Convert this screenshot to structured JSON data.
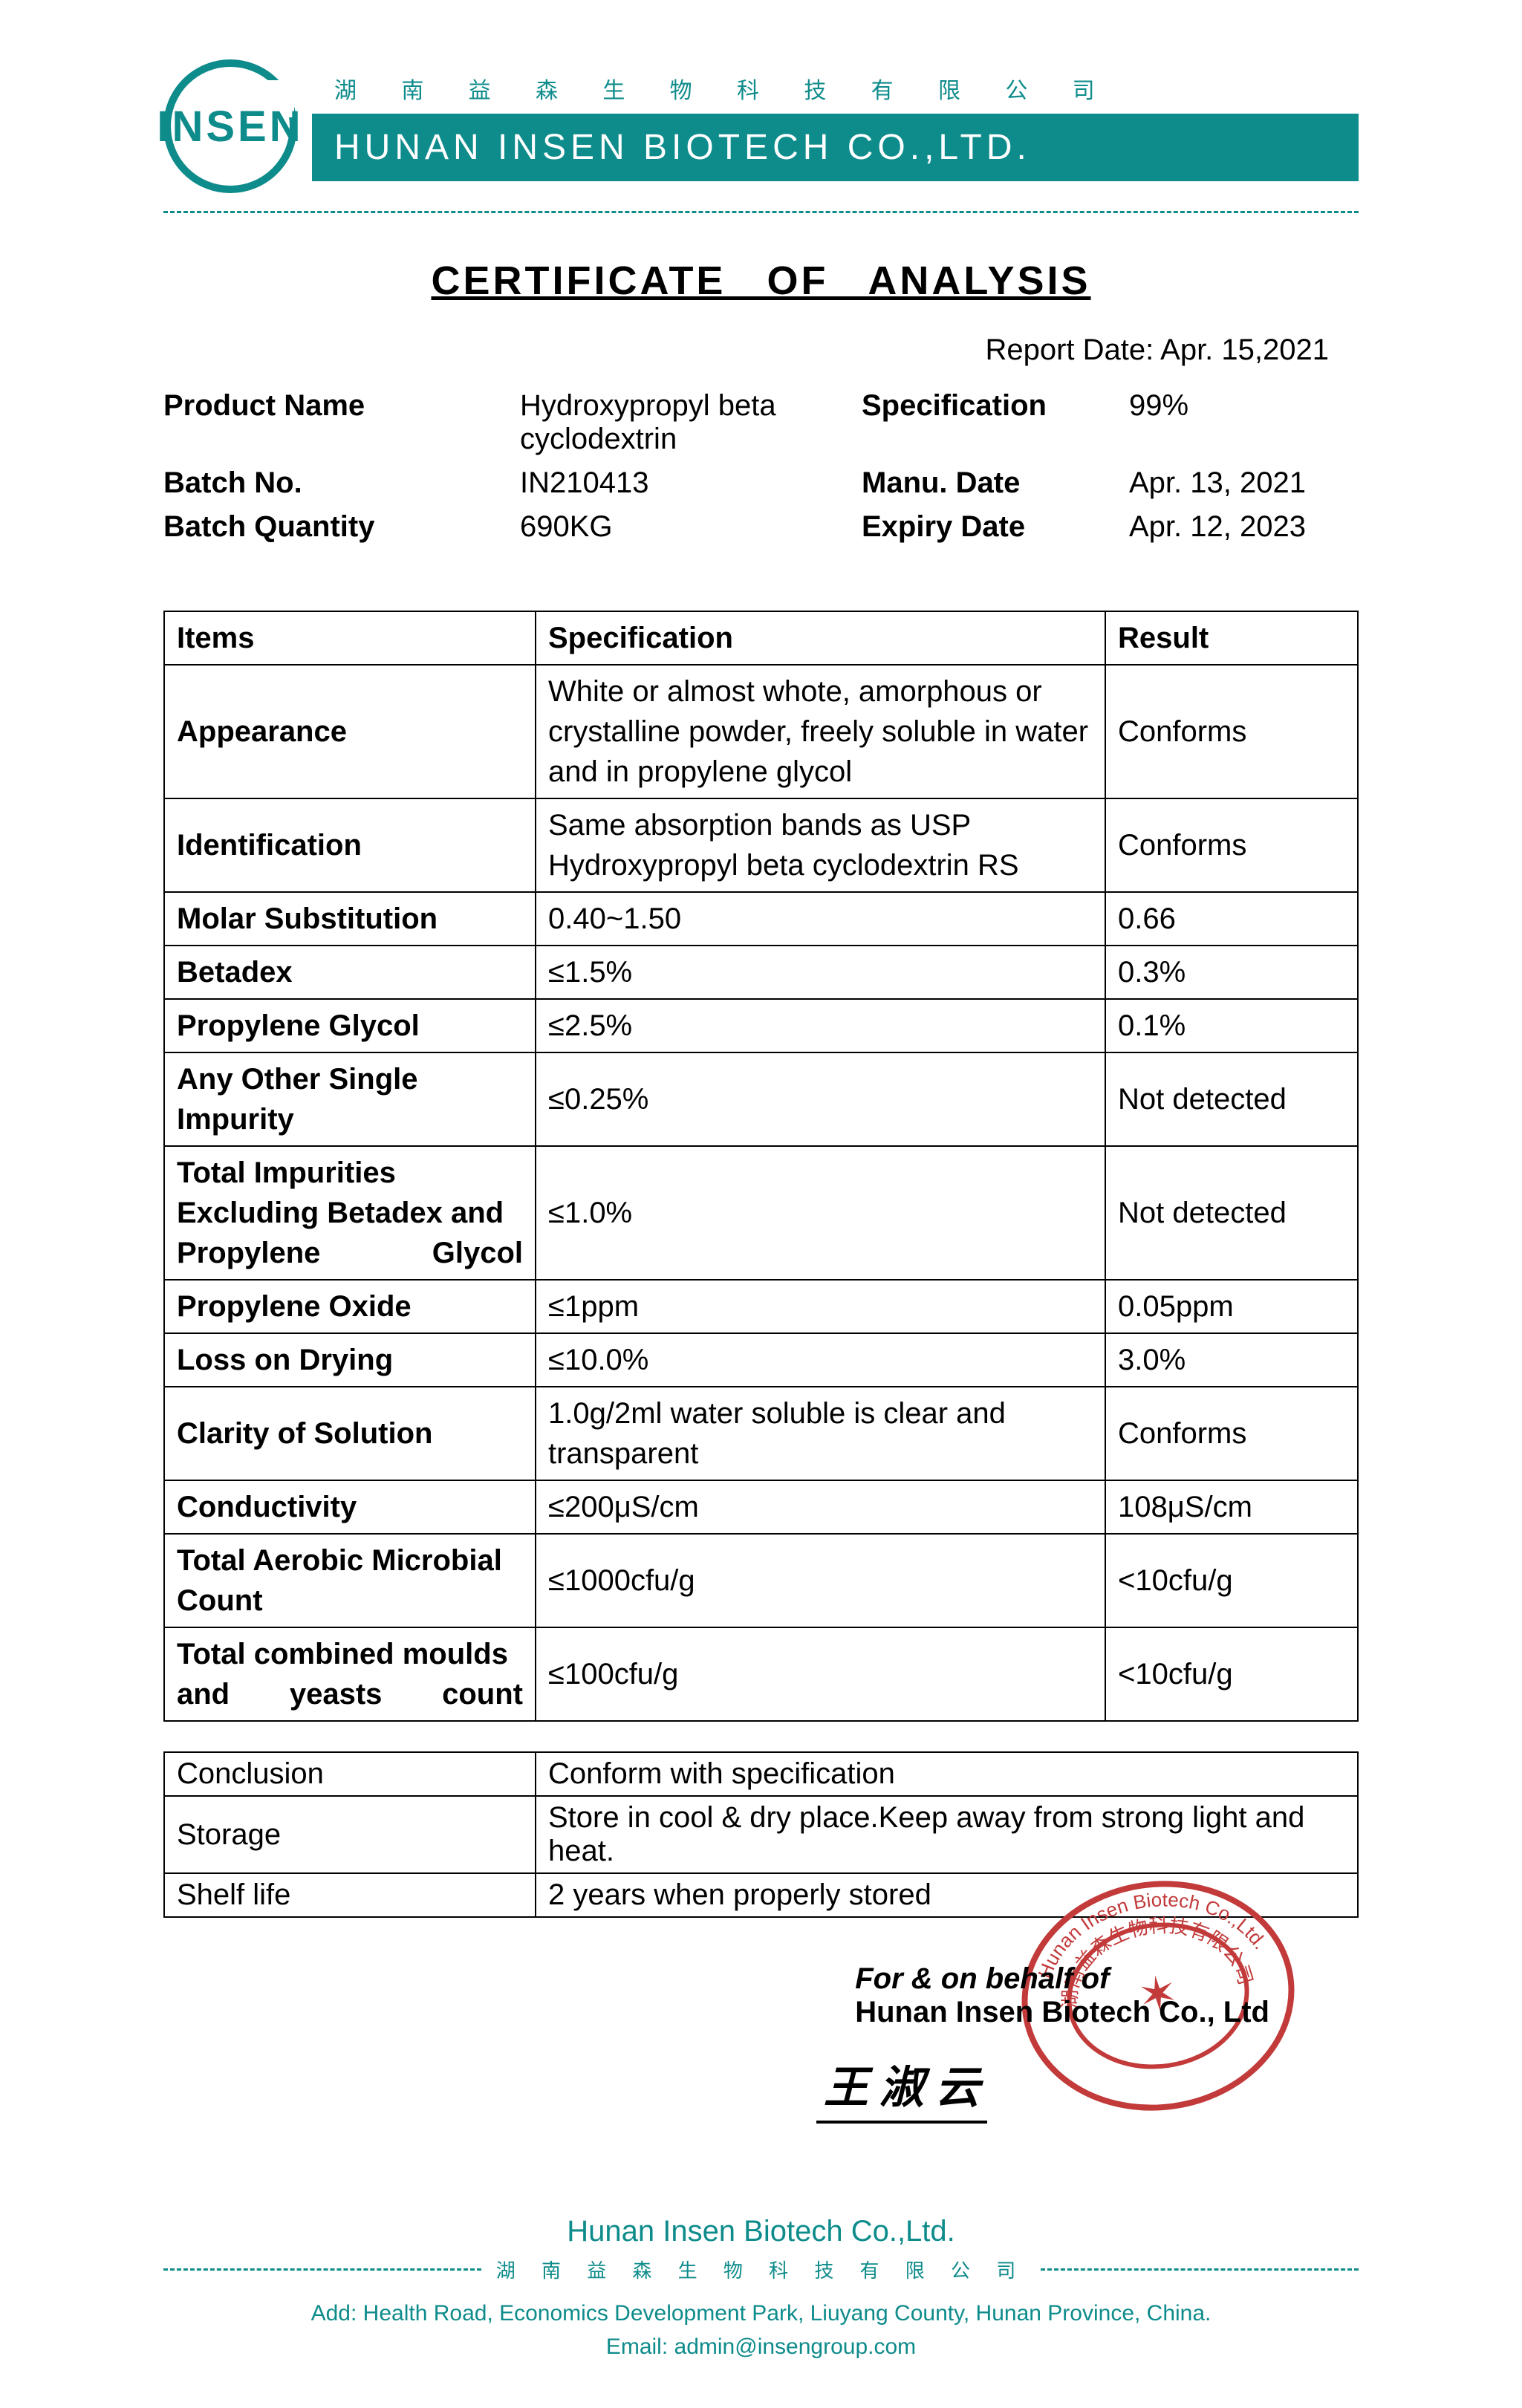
{
  "brand": {
    "logo_text": "INSEN",
    "chinese_top": "湖 南 益 森 生 物 科 技 有 限 公 司",
    "company_bar": "HUNAN INSEN BIOTECH CO.,LTD.",
    "primary_color": "#0e8b8b"
  },
  "title": "CERTIFICATE   OF   ANALYSIS",
  "report_date_label": "Report Date:",
  "report_date_value": "Apr. 15,2021",
  "meta": {
    "rows": [
      {
        "label_l": "Product Name",
        "value_l": "Hydroxypropyl beta cyclodextrin",
        "label_r": "Specification",
        "value_r": "99%"
      },
      {
        "label_l": "Batch No.",
        "value_l": "IN210413",
        "label_r": "Manu. Date",
        "value_r": "Apr. 13, 2021"
      },
      {
        "label_l": "Batch Quantity",
        "value_l": "690KG",
        "label_r": "Expiry Date",
        "value_r": "Apr. 12, 2023"
      }
    ]
  },
  "table": {
    "headers": {
      "items": "Items",
      "spec": "Specification",
      "result": "Result"
    },
    "rows": [
      {
        "item": "Appearance",
        "spec": "White or almost whote, amorphous or crystalline powder, freely soluble in water and in propylene glycol",
        "result": "Conforms",
        "justify_item": false
      },
      {
        "item": "Identification",
        "spec": "Same absorption bands as USP Hydroxypropyl beta cyclodextrin RS",
        "result": "Conforms",
        "justify_item": false
      },
      {
        "item": "Molar Substitution",
        "spec": "0.40~1.50",
        "result": "0.66",
        "justify_item": false
      },
      {
        "item": "Betadex",
        "spec": "≤1.5%",
        "result": "0.3%",
        "justify_item": false
      },
      {
        "item": "Propylene Glycol",
        "spec": "≤2.5%",
        "result": "0.1%",
        "justify_item": false
      },
      {
        "item": "Any Other Single Impurity",
        "spec": "≤0.25%",
        "result": "Not detected",
        "justify_item": false
      },
      {
        "item": "Total Impurities Excluding Betadex and Propylene Glycol",
        "spec": "≤1.0%",
        "result": "Not detected",
        "justify_item": true
      },
      {
        "item": "Propylene Oxide",
        "spec": "≤1ppm",
        "result": "0.05ppm",
        "justify_item": false
      },
      {
        "item": "Loss on Drying",
        "spec": "≤10.0%",
        "result": "3.0%",
        "justify_item": false
      },
      {
        "item": "Clarity of Solution",
        "spec": "1.0g/2ml water soluble is clear and transparent",
        "result": "Conforms",
        "justify_item": false
      },
      {
        "item": "Conductivity",
        "spec": "≤200μS/cm",
        "result": "108μS/cm",
        "justify_item": false
      },
      {
        "item": "Total Aerobic Microbial Count",
        "spec": "≤1000cfu/g",
        "result": "<10cfu/g",
        "justify_item": true
      },
      {
        "item": "Total combined moulds and yeasts count",
        "spec": "≤100cfu/g",
        "result": "<10cfu/g",
        "justify_item": true
      }
    ]
  },
  "footer_table": [
    {
      "label": "Conclusion",
      "value": "Conform with specification"
    },
    {
      "label": "Storage",
      "value": "Store in cool & dry place.Keep away from strong light and heat."
    },
    {
      "label": "Shelf life",
      "value": "2 years when properly stored"
    }
  ],
  "signature": {
    "line1": "For & on behalf of",
    "line2": "Hunan Insen Biotech Co., Ltd",
    "name": "王 淑 云",
    "stamp_color": "#c23a3a",
    "stamp_outer_text": "Hunan Insen Biotech Co.,Ltd.",
    "stamp_inner_cn": "湖南益森生物科技有限公司"
  },
  "page_footer": {
    "company_en": "Hunan Insen Biotech Co.,Ltd.",
    "company_cn": "湖 南 益 森 生 物 科 技 有 限 公 司",
    "addr_label": "Add:",
    "addr": "Health Road, Economics Development Park, Liuyang County, Hunan Province, China.",
    "email_label": "Email:",
    "email": "admin@insengroup.com"
  }
}
